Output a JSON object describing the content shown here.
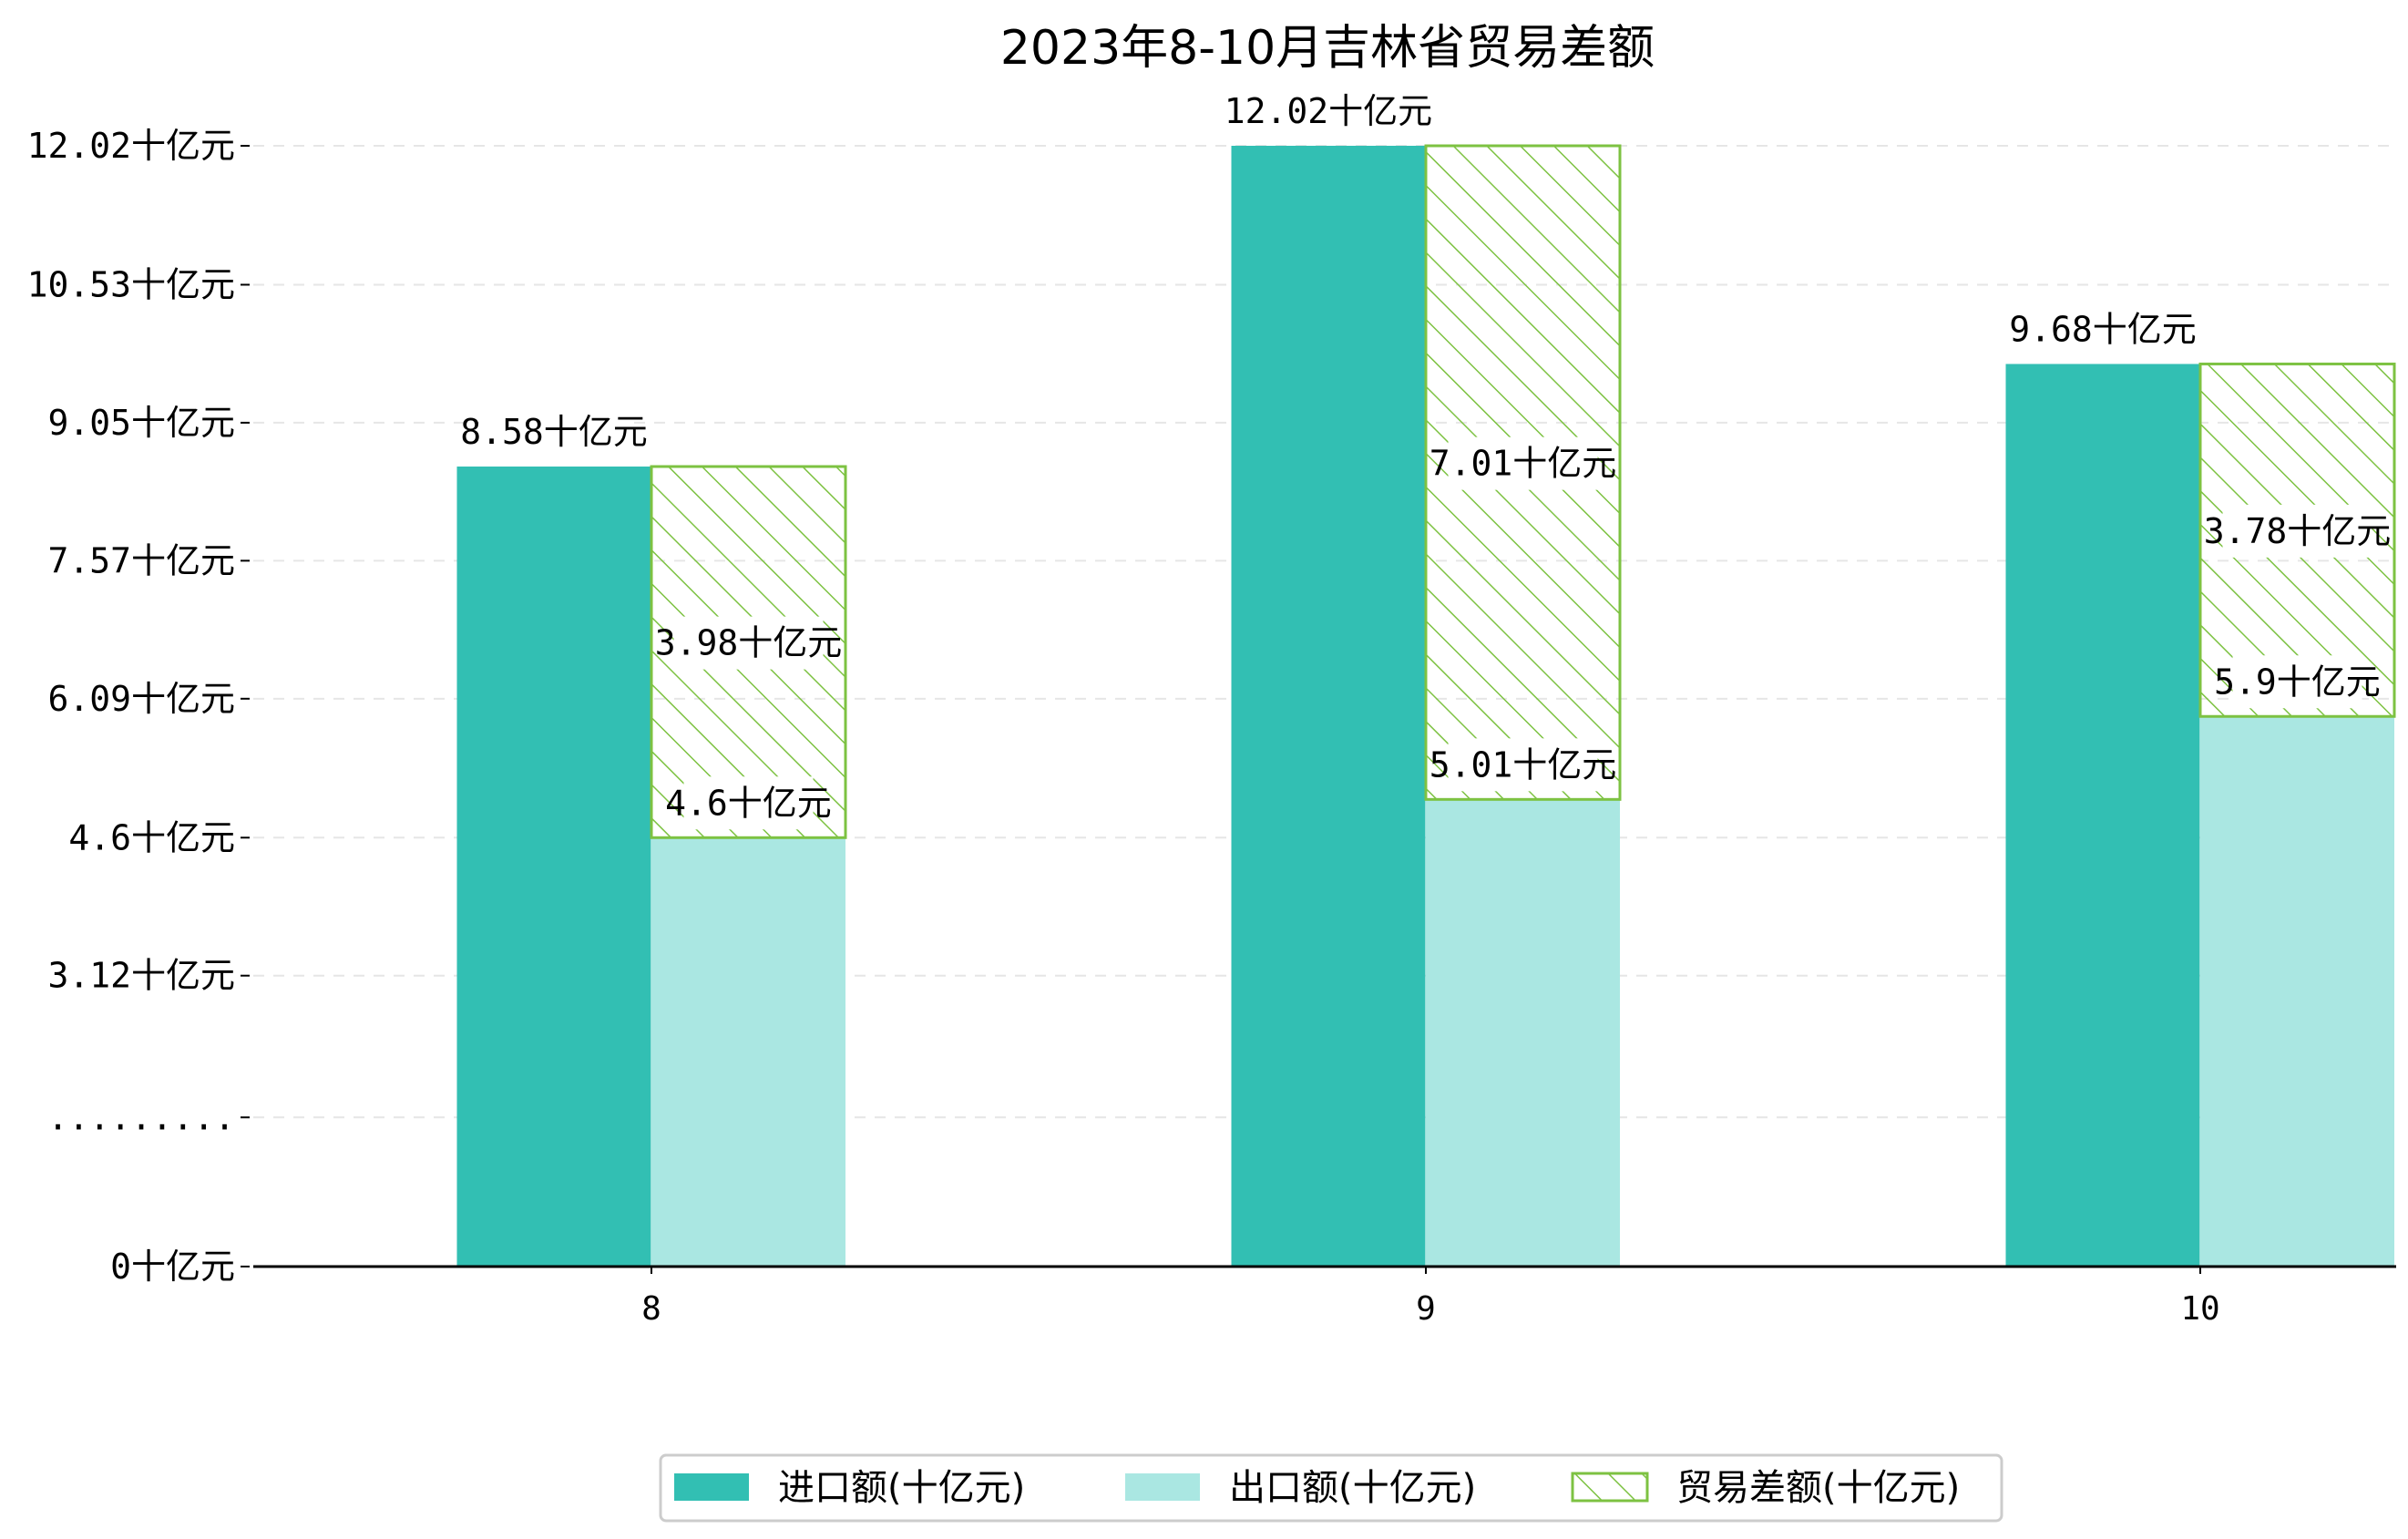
{
  "chart_data": {
    "type": "bar",
    "title": "2023年8-10月吉林省贸易差额",
    "categories": [
      "8",
      "9",
      "10"
    ],
    "series": [
      {
        "name": "进口额(十亿元)",
        "values": [
          8.58,
          12.02,
          9.68
        ],
        "labels": [
          "8.58十亿元",
          "12.02十亿元",
          "9.68十亿元"
        ],
        "color": "#32bfb3"
      },
      {
        "name": "出口额(十亿元)",
        "values": [
          4.6,
          5.01,
          5.9
        ],
        "labels": [
          "4.6十亿元",
          "5.01十亿元",
          "5.9十亿元"
        ],
        "color": "#aae7e2"
      },
      {
        "name": "贸易差额(十亿元)",
        "values": [
          3.98,
          7.01,
          3.78
        ],
        "labels": [
          "3.98十亿元",
          "7.01十亿元",
          "3.78十亿元"
        ],
        "color": "#7dc242",
        "stacked_on": "出口额(十亿元)",
        "hatch": true
      }
    ],
    "y_ticks": [
      {
        "value": 0,
        "label": "0十亿元"
      },
      {
        "value": 1.6,
        "label": "........."
      },
      {
        "value": 3.12,
        "label": "3.12十亿元"
      },
      {
        "value": 4.6,
        "label": "4.6十亿元"
      },
      {
        "value": 6.09,
        "label": "6.09十亿元"
      },
      {
        "value": 7.57,
        "label": "7.57十亿元"
      },
      {
        "value": 9.05,
        "label": "9.05十亿元"
      },
      {
        "value": 10.53,
        "label": "10.53十亿元"
      },
      {
        "value": 12.02,
        "label": "12.02十亿元"
      }
    ],
    "ylim": [
      0,
      12.02
    ],
    "grid": true,
    "legend_position": "bottom-center"
  }
}
